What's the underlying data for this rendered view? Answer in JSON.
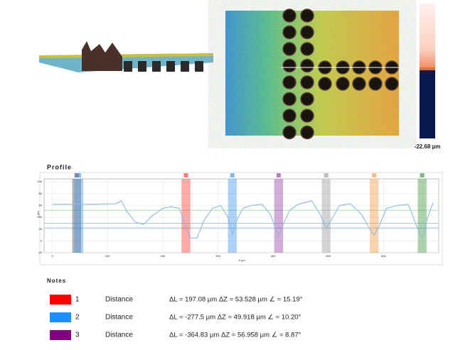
{
  "chart_data": {
    "type": "line",
    "title": "Profile",
    "x_label": "X µm",
    "y_label": "Z µm",
    "x": [
      0,
      40,
      80,
      115,
      125,
      135,
      150,
      165,
      180,
      200,
      215,
      230,
      240,
      250,
      262,
      275,
      290,
      305,
      318,
      326,
      334,
      345,
      360,
      380,
      395,
      405,
      410,
      418,
      430,
      445,
      470,
      485,
      496,
      508,
      520,
      540,
      560,
      575,
      583,
      592,
      605,
      625,
      645,
      660,
      670,
      680,
      690
    ],
    "series": [
      {
        "color": "#8fb8e0",
        "values": [
          62,
          62,
          62,
          63,
          68,
          50,
          32,
          28,
          42,
          55,
          58,
          55,
          30,
          5,
          5,
          35,
          55,
          60,
          40,
          12,
          35,
          55,
          60,
          62,
          45,
          20,
          8,
          28,
          52,
          62,
          68,
          45,
          22,
          40,
          60,
          63,
          45,
          20,
          10,
          25,
          55,
          60,
          62,
          25,
          5,
          40,
          65
        ]
      }
    ],
    "xlim": [
      -15,
      700
    ],
    "ylim": [
      -20,
      105
    ],
    "xticks": [
      0,
      100,
      200,
      300,
      400,
      500,
      600
    ],
    "yticks": [
      -20,
      0,
      20,
      40,
      60,
      80,
      100
    ],
    "grid": true,
    "band_width": 16,
    "bands": [
      {
        "x": 44,
        "color": "#555555"
      },
      {
        "x": 48,
        "color": "#4a9be8"
      },
      {
        "x": 242,
        "color": "#ff4040"
      },
      {
        "x": 326,
        "color": "#4a9be8"
      },
      {
        "x": 410,
        "color": "#9a4aa8"
      },
      {
        "x": 496,
        "color": "#a0a0a0"
      },
      {
        "x": 583,
        "color": "#f0a050"
      },
      {
        "x": 670,
        "color": "#4a9a4a"
      }
    ],
    "hlines": [
      {
        "value": 52,
        "color": "#8cd08c"
      },
      {
        "value": 30,
        "color": "#8fb8e0"
      },
      {
        "value": 22,
        "color": "#8fb8e0"
      }
    ]
  },
  "scale_bar": {
    "label": "-22.68 µm"
  },
  "notes": {
    "title": "Notes",
    "rows": [
      {
        "color": "#ff0000",
        "number": "1",
        "type": "Distance",
        "measure": "ΔL = 197.08 µm ΔZ = 53.528 µm ∠ = 15.19°"
      },
      {
        "color": "#1e8fff",
        "number": "2",
        "type": "Distance",
        "measure": "ΔL = -277.5 µm ΔZ = 49.918 µm ∠ = 10.20°"
      },
      {
        "color": "#800080",
        "number": "3",
        "type": "Distance",
        "measure": "ΔL = -364.83 µm ΔZ = 56.958 µm ∠ = 8.87°"
      }
    ]
  }
}
